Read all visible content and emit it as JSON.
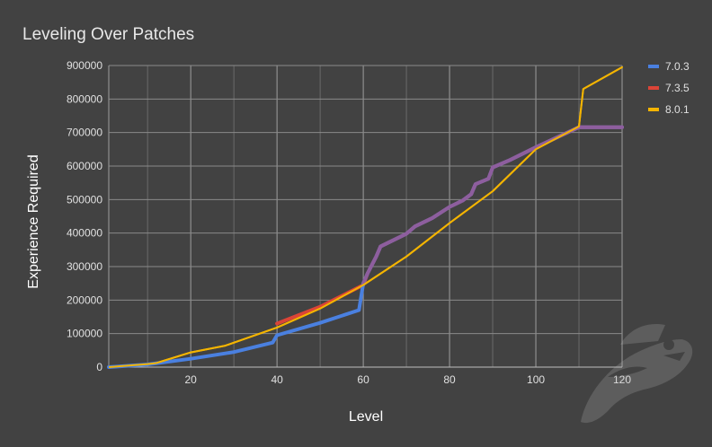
{
  "chart_data": {
    "type": "line",
    "title": "Leveling Over Patches",
    "xlabel": "Level",
    "ylabel": "Experience Required",
    "xlim": [
      1,
      120
    ],
    "ylim": [
      0,
      900000
    ],
    "x_ticks": [
      20,
      40,
      60,
      80,
      100,
      120
    ],
    "y_ticks": [
      0,
      100000,
      200000,
      300000,
      400000,
      500000,
      600000,
      700000,
      800000,
      900000
    ],
    "x_tick_labels": [
      "20",
      "40",
      "60",
      "80",
      "100",
      "120"
    ],
    "y_tick_labels": [
      "0",
      "100000",
      "200000",
      "300000",
      "400000",
      "500000",
      "600000",
      "700000",
      "800000",
      "900000"
    ],
    "grid": true,
    "legend_position": "right",
    "background": "#424242",
    "series": [
      {
        "name": "8.0.1",
        "color": "#f4b400",
        "points": [
          [
            1,
            0
          ],
          [
            10,
            9000
          ],
          [
            12,
            12000
          ],
          [
            20,
            44000
          ],
          [
            28,
            64000
          ],
          [
            40,
            118000
          ],
          [
            50,
            175000
          ],
          [
            60,
            245000
          ],
          [
            70,
            330000
          ],
          [
            80,
            430000
          ],
          [
            90,
            525000
          ],
          [
            100,
            650000
          ],
          [
            110,
            718000
          ],
          [
            111,
            830000
          ],
          [
            120,
            895000
          ]
        ]
      },
      {
        "name": "7.3.5",
        "color": "#db4437",
        "points": [
          [
            40,
            130000
          ],
          [
            50,
            180000
          ],
          [
            60,
            245000
          ],
          [
            61,
            280000
          ],
          [
            63,
            330000
          ],
          [
            64,
            360000
          ],
          [
            70,
            398000
          ],
          [
            72,
            420000
          ],
          [
            76,
            445000
          ],
          [
            80,
            478000
          ],
          [
            83,
            497000
          ],
          [
            85,
            516000
          ],
          [
            86,
            546000
          ],
          [
            89,
            562000
          ],
          [
            90,
            596000
          ],
          [
            94,
            618000
          ],
          [
            100,
            656000
          ],
          [
            110,
            716000
          ],
          [
            120,
            716000
          ]
        ]
      },
      {
        "name": "7.0.3",
        "color": "#4a80e0",
        "points": [
          [
            1,
            0
          ],
          [
            10,
            8000
          ],
          [
            20,
            25000
          ],
          [
            30,
            45000
          ],
          [
            39,
            73000
          ],
          [
            40,
            95000
          ],
          [
            50,
            132000
          ],
          [
            59,
            170000
          ],
          [
            60,
            250000
          ],
          [
            61,
            280000
          ],
          [
            63,
            330000
          ],
          [
            64,
            360000
          ],
          [
            70,
            398000
          ],
          [
            72,
            420000
          ],
          [
            76,
            445000
          ],
          [
            80,
            478000
          ],
          [
            83,
            497000
          ],
          [
            85,
            516000
          ],
          [
            86,
            546000
          ],
          [
            89,
            562000
          ],
          [
            90,
            596000
          ],
          [
            94,
            618000
          ],
          [
            100,
            656000
          ],
          [
            110,
            716000
          ],
          [
            120,
            716000
          ]
        ]
      }
    ],
    "overlap_color": "#8e5e9e",
    "overlap_start_level": 60
  }
}
